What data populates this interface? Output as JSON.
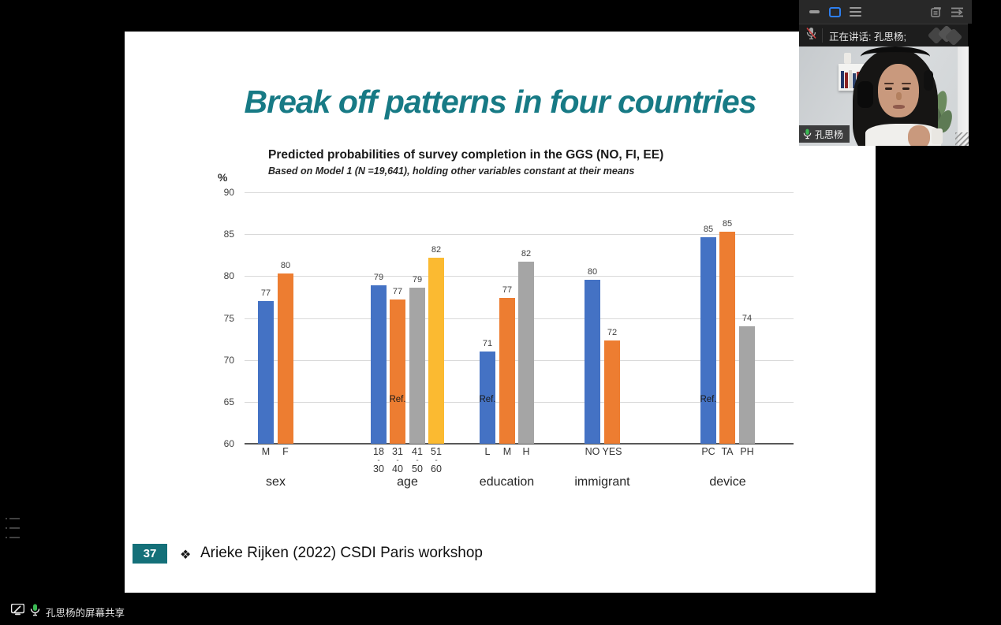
{
  "slide": {
    "title": "Break off patterns in four countries",
    "footer": {
      "page_number": "37",
      "bullet": "❖",
      "text": "Arieke Rijken (2022) CSDI Paris workshop"
    }
  },
  "chart_data": {
    "type": "bar",
    "title": "Predicted probabilities of survey completion in the GGS (NO, FI, EE)",
    "subtitle": "Based on Model 1 (N =19,641), holding other variables constant at their means",
    "ylabel": "%",
    "ylim": [
      60,
      90
    ],
    "yticks": [
      60,
      65,
      70,
      75,
      80,
      85,
      90
    ],
    "grid": true,
    "ref_label": "Ref.",
    "colors": {
      "blue": "#4472C4",
      "orange": "#ED7D31",
      "gray": "#A5A5A5",
      "yellow": "#FBBA31"
    },
    "groups": [
      {
        "label": "sex",
        "bars": [
          {
            "tick": "M",
            "value": 77,
            "plot": 77.0,
            "color": "blue"
          },
          {
            "tick": "F",
            "value": 80,
            "plot": 80.3,
            "color": "orange"
          }
        ]
      },
      {
        "label": "age",
        "bars": [
          {
            "tick": "18 - 30",
            "value": 79,
            "plot": 78.9,
            "color": "blue"
          },
          {
            "tick": "31 - 40",
            "value": 77,
            "plot": 77.2,
            "color": "orange",
            "ref": true
          },
          {
            "tick": "41 - 50",
            "value": 79,
            "plot": 78.6,
            "color": "gray"
          },
          {
            "tick": "51 - 60",
            "value": 82,
            "plot": 82.2,
            "color": "yellow"
          }
        ]
      },
      {
        "label": "education",
        "bars": [
          {
            "tick": "L",
            "value": 71,
            "plot": 71.0,
            "color": "blue",
            "ref": true
          },
          {
            "tick": "M",
            "value": 77,
            "plot": 77.4,
            "color": "orange"
          },
          {
            "tick": "H",
            "value": 82,
            "plot": 81.7,
            "color": "gray"
          }
        ]
      },
      {
        "label": "immigrant",
        "bars": [
          {
            "tick": "NO",
            "value": 80,
            "plot": 79.6,
            "color": "blue"
          },
          {
            "tick": "YES",
            "value": 72,
            "plot": 72.3,
            "color": "orange"
          }
        ]
      },
      {
        "label": "device",
        "bars": [
          {
            "tick": "PC",
            "value": 85,
            "plot": 84.6,
            "color": "blue",
            "ref": true
          },
          {
            "tick": "TA",
            "value": 85,
            "plot": 85.3,
            "color": "orange"
          },
          {
            "tick": "PH",
            "value": 74,
            "plot": 74.0,
            "color": "gray"
          }
        ]
      }
    ]
  },
  "float_window": {
    "speaking_text": "正在讲话: 孔思杨;",
    "name_tag": "孔思杨"
  },
  "statusbar": {
    "share_text": "孔思杨的屏幕共享"
  },
  "icons": {
    "minimize": "dash",
    "layout_active": "blue-square-outline",
    "menu": "hamburger",
    "switch_window": "window-with-lines",
    "collapse_panel": "lines-arrow-right",
    "mic_muted": "mic-with-red-slash",
    "mic_on_green": "green-mic",
    "screen_share": "monitor",
    "list_faint": "list-lines",
    "logo": "double-diamond"
  },
  "colors": {
    "title_teal": "#177a85",
    "badge_teal": "#147079",
    "accent_blue": "#2d7ff0",
    "mic_green": "#3bba54",
    "muted_red": "#d24242"
  }
}
